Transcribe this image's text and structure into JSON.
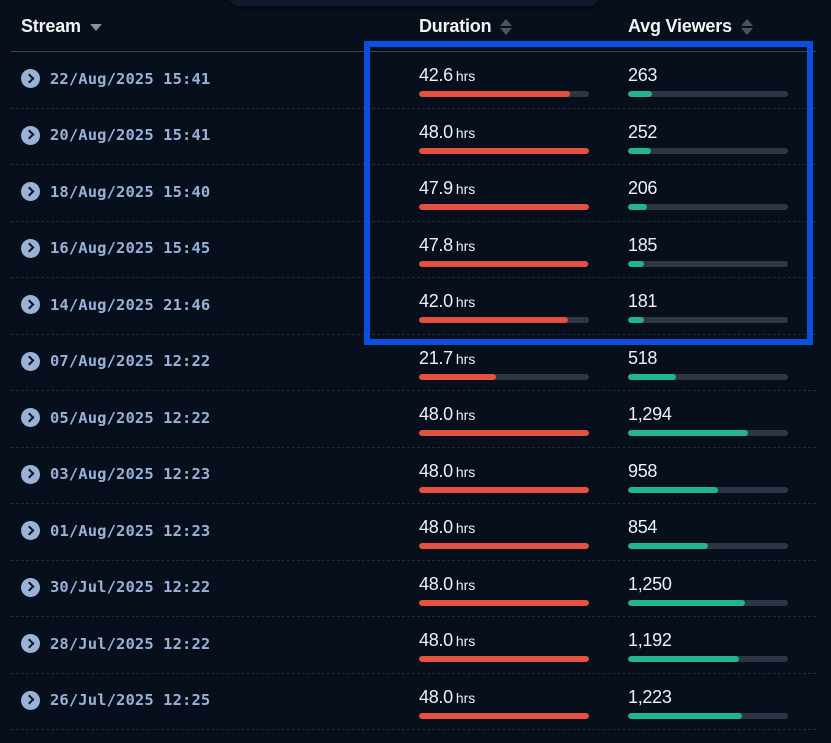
{
  "colors": {
    "background": "#070f1c",
    "duration_bar": "#e4513f",
    "viewers_bar": "#1eb590",
    "bar_track": "#2c3644",
    "stream_text": "#98b1d8",
    "highlight": "#0a4fe0"
  },
  "table": {
    "headers": {
      "stream": "Stream",
      "duration": "Duration",
      "avg_viewers": "Avg Viewers"
    },
    "duration_unit": "hrs",
    "rows": [
      {
        "stream": "22/Aug/2025 15:41",
        "duration": "42.6",
        "unit": "hrs",
        "duration_pct": 88.7,
        "avg_viewers": "263",
        "viewers_pct": 15.0
      },
      {
        "stream": "20/Aug/2025 15:41",
        "duration": "48.0",
        "unit": "hrs",
        "duration_pct": 100,
        "avg_viewers": "252",
        "viewers_pct": 14.4
      },
      {
        "stream": "18/Aug/2025 15:40",
        "duration": "47.9",
        "unit": "hrs",
        "duration_pct": 99.8,
        "avg_viewers": "206",
        "viewers_pct": 11.9
      },
      {
        "stream": "16/Aug/2025 15:45",
        "duration": "47.8",
        "unit": "hrs",
        "duration_pct": 99.6,
        "avg_viewers": "185",
        "viewers_pct": 10.0
      },
      {
        "stream": "14/Aug/2025 21:46",
        "duration": "42.0",
        "unit": "hrs",
        "duration_pct": 87.5,
        "avg_viewers": "181",
        "viewers_pct": 10.0
      },
      {
        "stream": "07/Aug/2025 12:22",
        "duration": "21.7",
        "unit": "hrs",
        "duration_pct": 45.2,
        "avg_viewers": "518",
        "viewers_pct": 30.0
      },
      {
        "stream": "05/Aug/2025 12:22",
        "duration": "48.0",
        "unit": "hrs",
        "duration_pct": 100,
        "avg_viewers": "1,294",
        "viewers_pct": 75.0
      },
      {
        "stream": "03/Aug/2025 12:23",
        "duration": "48.0",
        "unit": "hrs",
        "duration_pct": 100,
        "avg_viewers": "958",
        "viewers_pct": 56.3
      },
      {
        "stream": "01/Aug/2025 12:23",
        "duration": "48.0",
        "unit": "hrs",
        "duration_pct": 100,
        "avg_viewers": "854",
        "viewers_pct": 50.0
      },
      {
        "stream": "30/Jul/2025 12:22",
        "duration": "48.0",
        "unit": "hrs",
        "duration_pct": 100,
        "avg_viewers": "1,250",
        "viewers_pct": 73.1
      },
      {
        "stream": "28/Jul/2025 12:22",
        "duration": "48.0",
        "unit": "hrs",
        "duration_pct": 100,
        "avg_viewers": "1,192",
        "viewers_pct": 69.4
      },
      {
        "stream": "26/Jul/2025 12:25",
        "duration": "48.0",
        "unit": "hrs",
        "duration_pct": 100,
        "avg_viewers": "1,223",
        "viewers_pct": 71.3
      }
    ]
  },
  "icons": {
    "stream_sort": "caret-down-icon",
    "duration_sort": "sort-updown-icon",
    "viewers_sort": "sort-updown-icon",
    "row_expand": "chevron-right-circle-icon"
  }
}
